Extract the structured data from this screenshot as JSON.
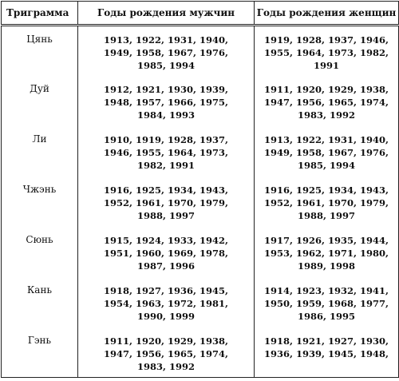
{
  "table": {
    "header": [
      "Триграмма",
      "Годы рождения мужчин",
      "Годы рождения женщин"
    ],
    "rows": [
      {
        "name": "Цянь",
        "men": [
          "1913, 1922, 1931, 1940,",
          "1949, 1958, 1967, 1976,",
          "1985, 1994"
        ],
        "women": [
          "1919, 1928, 1937, 1946,",
          "1955, 1964, 1973, 1982,",
          "1991"
        ]
      },
      {
        "name": "Дуй",
        "men": [
          "1912, 1921, 1930, 1939,",
          "1948, 1957, 1966, 1975,",
          "1984, 1993"
        ],
        "women": [
          "1911, 1920, 1929, 1938,",
          "1947, 1956, 1965, 1974,",
          "1983, 1992"
        ]
      },
      {
        "name": "Ли",
        "men": [
          "1910, 1919, 1928, 1937,",
          "1946, 1955, 1964, 1973,",
          "1982, 1991"
        ],
        "women": [
          "1913, 1922, 1931, 1940,",
          "1949, 1958, 1967, 1976,",
          "1985, 1994"
        ]
      },
      {
        "name": "Чжэнь",
        "men": [
          "1916, 1925, 1934, 1943,",
          "1952, 1961, 1970, 1979,",
          "1988, 1997"
        ],
        "women": [
          "1916, 1925, 1934, 1943,",
          "1952, 1961, 1970, 1979,",
          "1988, 1997"
        ]
      },
      {
        "name": "Сюнь",
        "men": [
          "1915, 1924, 1933, 1942,",
          "1951, 1960, 1969, 1978,",
          "1987, 1996"
        ],
        "women": [
          "1917, 1926, 1935, 1944,",
          "1953, 1962, 1971, 1980,",
          "1989, 1998"
        ]
      },
      {
        "name": "Кань",
        "men": [
          "1918, 1927, 1936, 1945,",
          "1954, 1963, 1972, 1981,",
          "1990, 1999"
        ],
        "women": [
          "1914, 1923, 1932, 1941,",
          "1950, 1959, 1968, 1977,",
          "1986, 1995"
        ]
      },
      {
        "name": "Гэнь",
        "men": [
          "1911, 1920, 1929, 1938,",
          "1947, 1956, 1965, 1974,",
          "1983, 1992"
        ],
        "women": [
          "1918, 1921, 1927, 1930,",
          "1936, 1939, 1945, 1948,"
        ]
      }
    ]
  }
}
